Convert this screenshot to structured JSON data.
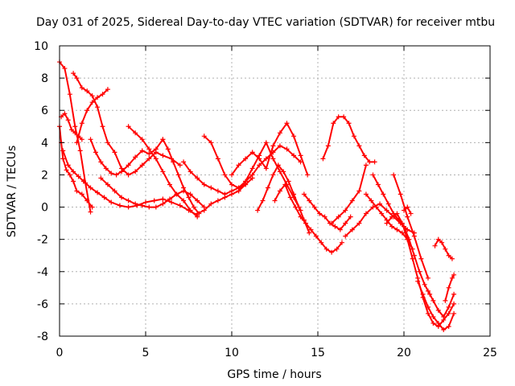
{
  "chart_data": {
    "type": "scatter",
    "title": "Day 031 of 2025, Sidereal Day-to-day VTEC variation (SDTVAR) for receiver mtbu",
    "xlabel": "GPS time / hours",
    "ylabel": "SDTVAR / TECUs",
    "xlim": [
      0,
      25
    ],
    "ylim": [
      -8,
      10
    ],
    "xticks": [
      0,
      5,
      10,
      15,
      20,
      25
    ],
    "yticks": [
      -8,
      -6,
      -4,
      -2,
      0,
      2,
      4,
      6,
      8,
      10
    ],
    "grid": true,
    "marker": "+",
    "color": "#ff0000",
    "series": [
      {
        "name": "track-1",
        "x": [
          0.0,
          0.3,
          0.6,
          0.9,
          1.2,
          1.5,
          1.8
        ],
        "y": [
          9.0,
          8.6,
          7.0,
          5.0,
          3.5,
          1.5,
          -0.3
        ]
      },
      {
        "name": "track-2",
        "x": [
          0.0,
          0.1,
          0.2,
          0.4,
          0.6,
          0.8,
          1.0,
          1.3,
          1.6,
          1.9
        ],
        "y": [
          5.0,
          4.0,
          3.0,
          2.3,
          2.0,
          1.6,
          1.0,
          0.8,
          0.4,
          0.0
        ]
      },
      {
        "name": "track-3",
        "x": [
          0.1,
          0.3,
          0.5,
          0.7,
          0.9,
          1.1,
          1.3
        ],
        "y": [
          5.6,
          5.8,
          5.4,
          4.8,
          4.6,
          4.4,
          4.2
        ]
      },
      {
        "name": "track-4",
        "x": [
          0.2,
          0.5,
          0.8,
          1.1,
          1.4,
          1.8,
          2.2,
          2.6,
          3.0,
          3.5,
          4.0,
          4.5,
          5.0,
          5.5,
          6.0,
          6.5,
          7.0,
          7.5,
          8.0
        ],
        "y": [
          3.5,
          2.6,
          2.2,
          1.9,
          1.6,
          1.2,
          0.9,
          0.6,
          0.3,
          0.1,
          0.0,
          0.1,
          0.3,
          0.4,
          0.5,
          0.3,
          0.1,
          -0.2,
          -0.5
        ]
      },
      {
        "name": "track-5",
        "x": [
          0.8,
          1.0,
          1.3,
          1.6,
          1.9,
          2.2,
          2.5,
          2.8,
          3.2,
          3.6,
          4.0,
          4.4,
          4.8,
          5.2,
          5.6,
          6.0,
          6.5,
          7.0
        ],
        "y": [
          8.3,
          8.0,
          7.4,
          7.2,
          6.9,
          6.2,
          5.0,
          4.0,
          3.4,
          2.4,
          2.0,
          2.2,
          2.6,
          3.0,
          3.4,
          3.2,
          3.0,
          2.6
        ]
      },
      {
        "name": "track-6",
        "x": [
          1.0,
          1.3,
          1.6,
          1.9,
          2.2,
          2.5,
          2.8
        ],
        "y": [
          4.0,
          5.2,
          6.0,
          6.5,
          6.8,
          7.0,
          7.3
        ]
      },
      {
        "name": "track-7",
        "x": [
          1.8,
          2.1,
          2.4,
          2.7,
          3.0,
          3.3,
          3.6,
          4.0,
          4.4,
          4.8,
          5.2,
          5.6,
          6.0
        ],
        "y": [
          4.2,
          3.4,
          2.8,
          2.4,
          2.1,
          2.0,
          2.2,
          2.6,
          3.1,
          3.5,
          3.3,
          3.6,
          4.2
        ]
      },
      {
        "name": "track-8",
        "x": [
          2.4,
          2.8,
          3.2,
          3.6,
          4.0,
          4.4,
          4.8,
          5.2,
          5.6,
          6.0,
          6.4,
          6.8,
          7.2,
          7.6,
          8.0,
          8.4
        ],
        "y": [
          1.8,
          1.4,
          1.0,
          0.6,
          0.4,
          0.2,
          0.1,
          0.0,
          0.0,
          0.2,
          0.5,
          0.8,
          1.0,
          0.8,
          0.4,
          0.0
        ]
      },
      {
        "name": "track-9",
        "x": [
          4.0,
          4.4,
          4.8,
          5.2,
          5.6,
          6.0,
          6.4,
          6.8,
          7.2,
          7.6,
          8.0
        ],
        "y": [
          5.0,
          4.6,
          4.2,
          3.6,
          3.0,
          2.2,
          1.4,
          0.8,
          0.4,
          -0.2,
          -0.6
        ]
      },
      {
        "name": "track-10",
        "x": [
          6.0,
          6.3,
          6.6,
          6.9,
          7.2,
          7.5,
          7.8,
          8.1
        ],
        "y": [
          4.2,
          3.6,
          2.8,
          2.0,
          1.2,
          0.6,
          0.0,
          -0.4
        ]
      },
      {
        "name": "track-11",
        "x": [
          7.2,
          7.6,
          8.0,
          8.4,
          8.8,
          9.2,
          9.6,
          10.0,
          10.4,
          10.8
        ],
        "y": [
          2.8,
          2.2,
          1.8,
          1.4,
          1.2,
          1.0,
          0.8,
          1.0,
          1.2,
          1.4
        ]
      },
      {
        "name": "track-12",
        "x": [
          8.4,
          8.8,
          9.2,
          9.6,
          10.0,
          10.4,
          10.8,
          11.2,
          11.6,
          12.0,
          12.4,
          12.8,
          13.2,
          13.6,
          14.0
        ],
        "y": [
          4.4,
          4.0,
          3.0,
          2.0,
          1.4,
          1.2,
          1.6,
          2.0,
          2.6,
          3.0,
          3.4,
          3.8,
          3.6,
          3.2,
          2.8
        ]
      },
      {
        "name": "track-13",
        "x": [
          8.0,
          8.4,
          8.8,
          9.2,
          9.6,
          10.0,
          10.4,
          10.8,
          11.2
        ],
        "y": [
          -0.4,
          -0.2,
          0.2,
          0.4,
          0.6,
          0.8,
          1.0,
          1.4,
          1.8
        ]
      },
      {
        "name": "track-14",
        "x": [
          10.0,
          10.4,
          10.8,
          11.2,
          11.6,
          12.0,
          12.4,
          12.8,
          13.2,
          13.6,
          14.0,
          14.4
        ],
        "y": [
          2.0,
          2.6,
          3.0,
          3.4,
          3.0,
          2.4,
          3.8,
          4.6,
          5.2,
          4.4,
          3.2,
          2.0
        ]
      },
      {
        "name": "track-15",
        "x": [
          10.4,
          10.8,
          11.2,
          11.6,
          12.0,
          12.4,
          12.8,
          13.2,
          13.6,
          14.0
        ],
        "y": [
          1.0,
          1.6,
          2.4,
          3.2,
          4.0,
          3.0,
          2.2,
          1.4,
          0.6,
          -0.2
        ]
      },
      {
        "name": "track-16",
        "x": [
          11.5,
          11.8,
          12.1,
          12.4,
          12.7,
          13.0,
          13.3,
          13.6,
          13.9,
          14.2,
          14.5
        ],
        "y": [
          -0.2,
          0.4,
          1.2,
          2.0,
          2.6,
          2.2,
          1.6,
          0.8,
          0.0,
          -0.8,
          -1.6
        ]
      },
      {
        "name": "track-17",
        "x": [
          12.5,
          12.8,
          13.1,
          13.4,
          13.7,
          14.0,
          14.3,
          14.6,
          14.9,
          15.2,
          15.5,
          15.8,
          16.1,
          16.4
        ],
        "y": [
          0.4,
          1.0,
          1.4,
          0.6,
          0.0,
          -0.6,
          -1.0,
          -1.4,
          -1.8,
          -2.2,
          -2.6,
          -2.8,
          -2.6,
          -2.2
        ]
      },
      {
        "name": "track-18",
        "x": [
          14.2,
          14.5,
          14.8,
          15.1,
          15.4,
          15.7,
          16.0,
          16.3,
          16.6,
          16.9
        ],
        "y": [
          0.8,
          0.4,
          0.0,
          -0.4,
          -0.6,
          -1.0,
          -1.2,
          -1.4,
          -1.0,
          -0.6
        ]
      },
      {
        "name": "track-19",
        "x": [
          15.3,
          15.6,
          15.9,
          16.2,
          16.5,
          16.8,
          17.1,
          17.4,
          17.7,
          18.0,
          18.3
        ],
        "y": [
          3.0,
          3.8,
          5.2,
          5.6,
          5.6,
          5.2,
          4.4,
          3.8,
          3.2,
          2.8,
          2.8
        ]
      },
      {
        "name": "track-20",
        "x": [
          15.8,
          16.2,
          16.6,
          17.0,
          17.4,
          17.8
        ],
        "y": [
          -1.0,
          -0.6,
          -0.2,
          0.4,
          1.0,
          2.6
        ]
      },
      {
        "name": "track-21",
        "x": [
          16.6,
          17.0,
          17.4,
          17.8,
          18.2,
          18.6,
          19.0,
          19.4,
          19.8,
          20.2,
          20.6
        ],
        "y": [
          -1.8,
          -1.4,
          -1.0,
          -0.4,
          0.0,
          0.2,
          -0.2,
          -0.6,
          -1.0,
          -1.4,
          -1.6
        ]
      },
      {
        "name": "track-22",
        "x": [
          17.8,
          18.1,
          18.4,
          18.7,
          19.0,
          19.3,
          19.6,
          19.9,
          20.2,
          20.5
        ],
        "y": [
          0.8,
          0.4,
          0.0,
          -0.4,
          -0.8,
          -1.2,
          -1.4,
          -1.6,
          -2.0,
          -2.6
        ]
      },
      {
        "name": "track-23",
        "x": [
          18.2,
          18.5,
          18.8,
          19.1,
          19.4,
          19.7,
          20.0,
          20.3,
          20.6,
          20.9,
          21.2,
          21.5
        ],
        "y": [
          2.0,
          1.4,
          0.8,
          0.2,
          -0.4,
          -0.8,
          -1.2,
          -2.0,
          -3.0,
          -4.0,
          -4.8,
          -5.4
        ]
      },
      {
        "name": "track-24",
        "x": [
          19.0,
          19.3,
          19.6,
          19.9,
          20.2,
          20.5,
          20.8,
          21.1,
          21.4,
          21.7,
          22.0,
          22.3,
          22.6,
          22.9
        ],
        "y": [
          -1.0,
          -0.6,
          -0.4,
          -1.0,
          -2.0,
          -3.2,
          -4.4,
          -5.6,
          -6.6,
          -7.2,
          -7.4,
          -7.0,
          -6.6,
          -6.0
        ]
      },
      {
        "name": "track-25",
        "x": [
          19.4,
          19.8,
          20.2,
          20.6,
          21.0,
          21.4
        ],
        "y": [
          2.0,
          0.8,
          -0.6,
          -1.8,
          -3.2,
          -4.4
        ]
      },
      {
        "name": "track-26",
        "x": [
          20.0,
          20.2,
          20.4
        ],
        "y": [
          -0.2,
          0.0,
          -0.4
        ]
      },
      {
        "name": "track-27",
        "x": [
          20.8,
          21.1,
          21.4,
          21.7,
          22.0,
          22.3,
          22.6,
          22.9
        ],
        "y": [
          -4.6,
          -5.4,
          -6.2,
          -6.8,
          -7.2,
          -7.6,
          -7.4,
          -6.6
        ]
      },
      {
        "name": "track-28",
        "x": [
          21.4,
          21.7,
          22.0,
          22.3,
          22.6,
          22.9
        ],
        "y": [
          -5.2,
          -5.8,
          -6.4,
          -6.8,
          -6.2,
          -5.4
        ]
      },
      {
        "name": "track-29",
        "x": [
          21.8,
          22.0,
          22.2,
          22.4,
          22.6,
          22.8
        ],
        "y": [
          -2.4,
          -2.0,
          -2.2,
          -2.6,
          -3.0,
          -3.2
        ]
      },
      {
        "name": "track-30",
        "x": [
          22.4,
          22.6,
          22.8,
          22.9
        ],
        "y": [
          -5.8,
          -5.0,
          -4.4,
          -4.2
        ]
      }
    ]
  }
}
